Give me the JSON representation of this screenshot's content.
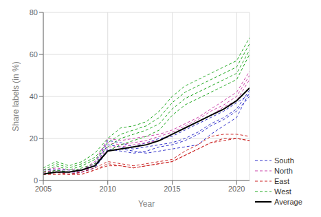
{
  "chart_data": {
    "type": "line",
    "xlabel": "Year",
    "ylabel": "Share labels (in %)",
    "x": [
      2005,
      2006,
      2007,
      2008,
      2009,
      2010,
      2011,
      2012,
      2013,
      2014,
      2015,
      2016,
      2017,
      2018,
      2019,
      2020,
      2021
    ],
    "xlim": [
      2005,
      2021
    ],
    "xticks": [
      2005,
      2010,
      2015,
      2020
    ],
    "ylim": [
      0,
      80
    ],
    "yticks": [
      0,
      20,
      40,
      60,
      80
    ],
    "grid": true,
    "legend": "lower right",
    "series": [
      {
        "name": "South",
        "color": "#3333cc",
        "line_style": "dashed",
        "values": [
          3,
          4,
          3,
          4,
          6,
          14,
          15,
          14,
          13,
          14,
          15,
          16,
          17,
          22,
          26,
          30,
          42
        ]
      },
      {
        "name": "South",
        "color": "#3333cc",
        "line_style": "dashed",
        "values": [
          4,
          5,
          4,
          5,
          7,
          17,
          16,
          15,
          16,
          17,
          18,
          20,
          23,
          27,
          30,
          34,
          43
        ]
      },
      {
        "name": "South",
        "color": "#3333cc",
        "line_style": "dashed",
        "values": [
          5,
          5,
          5,
          5,
          8,
          19,
          18,
          16,
          18,
          20,
          21,
          24,
          27,
          30,
          33,
          37,
          41
        ]
      },
      {
        "name": "South",
        "color": "#3333cc",
        "line_style": "dashed",
        "values": [
          4,
          4,
          4,
          4,
          6,
          15,
          14,
          13,
          14,
          16,
          17,
          19,
          22,
          26,
          29,
          33,
          40
        ]
      },
      {
        "name": "North",
        "color": "#cc44aa",
        "line_style": "dashed",
        "values": [
          5,
          6,
          5,
          5,
          9,
          20,
          19,
          20,
          21,
          22,
          24,
          27,
          30,
          34,
          38,
          42,
          52
        ]
      },
      {
        "name": "North",
        "color": "#cc44aa",
        "line_style": "dashed",
        "values": [
          4,
          5,
          4,
          5,
          8,
          18,
          17,
          18,
          19,
          21,
          23,
          26,
          29,
          33,
          36,
          40,
          50
        ]
      },
      {
        "name": "North",
        "color": "#cc44aa",
        "line_style": "dashed",
        "values": [
          3,
          4,
          4,
          4,
          7,
          16,
          16,
          17,
          18,
          19,
          22,
          25,
          28,
          31,
          35,
          38,
          48
        ]
      },
      {
        "name": "East",
        "color": "#cc2222",
        "line_style": "dashed",
        "values": [
          3,
          3,
          3,
          3,
          5,
          8,
          7,
          6,
          7,
          8,
          9,
          12,
          15,
          18,
          19,
          20,
          19
        ]
      },
      {
        "name": "East",
        "color": "#cc2222",
        "line_style": "dashed",
        "values": [
          4,
          4,
          3,
          4,
          6,
          9,
          8,
          7,
          8,
          9,
          10,
          14,
          17,
          21,
          22,
          22,
          21
        ]
      },
      {
        "name": "East",
        "color": "#cc2222",
        "line_style": "dashed",
        "values": [
          3,
          3,
          3,
          3,
          5,
          7,
          7,
          6,
          7,
          8,
          9,
          12,
          15,
          18,
          20,
          20,
          19
        ]
      },
      {
        "name": "West",
        "color": "#22aa22",
        "line_style": "dashed",
        "values": [
          6,
          9,
          7,
          9,
          13,
          20,
          25,
          26,
          28,
          33,
          40,
          45,
          48,
          51,
          54,
          57,
          68
        ]
      },
      {
        "name": "West",
        "color": "#22aa22",
        "line_style": "dashed",
        "values": [
          5,
          8,
          6,
          8,
          11,
          18,
          22,
          24,
          26,
          30,
          37,
          42,
          45,
          48,
          51,
          54,
          65
        ]
      },
      {
        "name": "West",
        "color": "#22aa22",
        "line_style": "dashed",
        "values": [
          4,
          7,
          5,
          7,
          10,
          16,
          20,
          22,
          24,
          27,
          34,
          39,
          42,
          45,
          48,
          51,
          62
        ]
      },
      {
        "name": "West",
        "color": "#22aa22",
        "line_style": "dashed",
        "values": [
          3,
          5,
          4,
          6,
          8,
          14,
          17,
          19,
          21,
          24,
          31,
          36,
          39,
          42,
          45,
          48,
          60
        ]
      },
      {
        "name": "Average",
        "color": "#000000",
        "line_style": "solid",
        "values": [
          3,
          4,
          4,
          5,
          7,
          14,
          15,
          16,
          17,
          19,
          22,
          25,
          28,
          31,
          34,
          38,
          44
        ]
      }
    ]
  }
}
